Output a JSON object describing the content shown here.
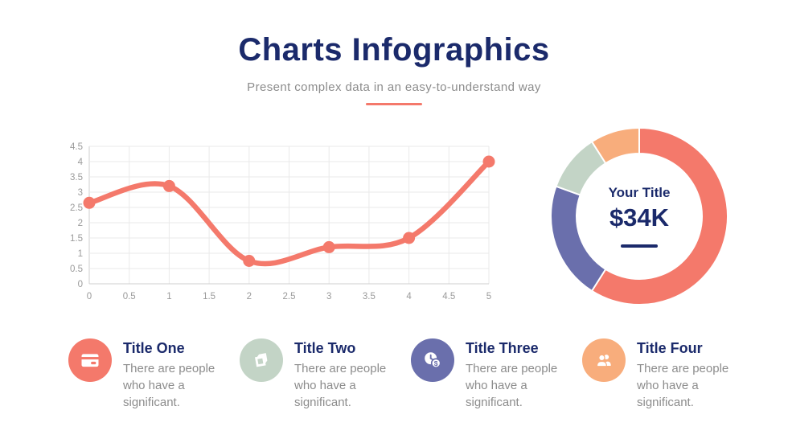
{
  "header": {
    "title": "Charts Infographics",
    "subtitle": "Present complex data in an easy-to-understand way"
  },
  "colors": {
    "navy": "#1B2A6B",
    "coral": "#F4796B",
    "orange": "#F8AD7C",
    "sage": "#C3D4C6",
    "purple": "#6A6FAC",
    "gray_text": "#8C8C8C",
    "axis_label": "#9A9A9A",
    "grid": "#EAEAEA",
    "axis": "#CFCFCF"
  },
  "chart_data": [
    {
      "type": "line",
      "x": [
        0,
        1,
        2,
        3,
        4,
        5
      ],
      "values": [
        2.65,
        3.2,
        0.75,
        1.2,
        1.5,
        4
      ],
      "x_ticks": [
        0,
        0.5,
        1,
        1.5,
        2,
        2.5,
        3,
        3.5,
        4,
        4.5,
        5
      ],
      "y_ticks": [
        0,
        0.5,
        1,
        1.5,
        2,
        2.5,
        3,
        3.5,
        4,
        4.5
      ],
      "xlim": [
        0,
        5
      ],
      "ylim": [
        0,
        4.5
      ],
      "grid": true,
      "smooth": true,
      "markers": true,
      "color": "#F4796B",
      "title": "",
      "xlabel": "",
      "ylabel": "",
      "legend": "none"
    },
    {
      "type": "donut",
      "segments": [
        {
          "name": "segment-coral",
          "value": 59,
          "color": "#F4796B"
        },
        {
          "name": "segment-purple",
          "value": 21.5,
          "color": "#6A6FAC"
        },
        {
          "name": "segment-sage",
          "value": 10.5,
          "color": "#C3D4C6"
        },
        {
          "name": "segment-orange",
          "value": 9,
          "color": "#F8AD7C"
        }
      ],
      "start_angle_deg": 0,
      "direction": "clockwise",
      "center_label": "Your Title",
      "center_value": "$34K"
    }
  ],
  "features": [
    {
      "title": "Title One",
      "description": "There are people who have a significant.",
      "icon": "credit-card-icon",
      "color": "#F4796B"
    },
    {
      "title": "Title Two",
      "description": "There are people who have a significant.",
      "icon": "cube-icon",
      "color": "#C3D4C6"
    },
    {
      "title": "Title Three",
      "description": "There are people who have a significant.",
      "icon": "time-money-icon",
      "color": "#6A6FAC"
    },
    {
      "title": "Title Four",
      "description": "There are people who have a significant.",
      "icon": "users-icon",
      "color": "#F8AD7C"
    }
  ]
}
